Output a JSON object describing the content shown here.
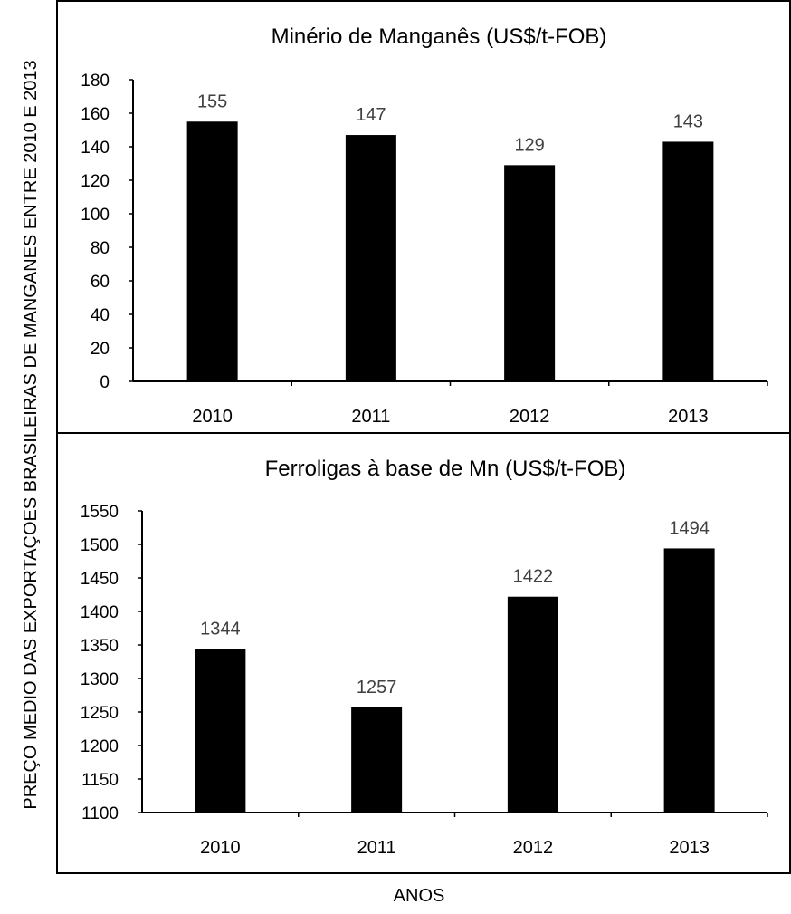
{
  "figure": {
    "ylabel": "PREÇO MEDIO DAS EXPORTAÇOES BRASILEIRAS DE MANGANES ENTRE  2010 E 2013",
    "xlabel": "ANOS"
  },
  "chart_data": [
    {
      "type": "bar",
      "title": "Minério de Manganês (US$/t-FOB)",
      "categories": [
        "2010",
        "2011",
        "2012",
        "2013"
      ],
      "values": [
        155,
        147,
        129,
        143
      ],
      "data_labels": [
        "155",
        "147",
        "129",
        "143"
      ],
      "ylim": [
        0,
        180
      ],
      "yticks": [
        0,
        20,
        40,
        60,
        80,
        100,
        120,
        140,
        160,
        180
      ],
      "bar_color": "#000000",
      "grid": false
    },
    {
      "type": "bar",
      "title": "Ferroligas à base de Mn (US$/t-FOB)",
      "categories": [
        "2010",
        "2011",
        "2012",
        "2013"
      ],
      "values": [
        1344,
        1257,
        1422,
        1494
      ],
      "data_labels": [
        "1344",
        "1257",
        "1422",
        "1494"
      ],
      "ylim": [
        1100,
        1550
      ],
      "yticks": [
        1100,
        1150,
        1200,
        1250,
        1300,
        1350,
        1400,
        1450,
        1500,
        1550
      ],
      "bar_color": "#000000",
      "grid": false
    }
  ]
}
